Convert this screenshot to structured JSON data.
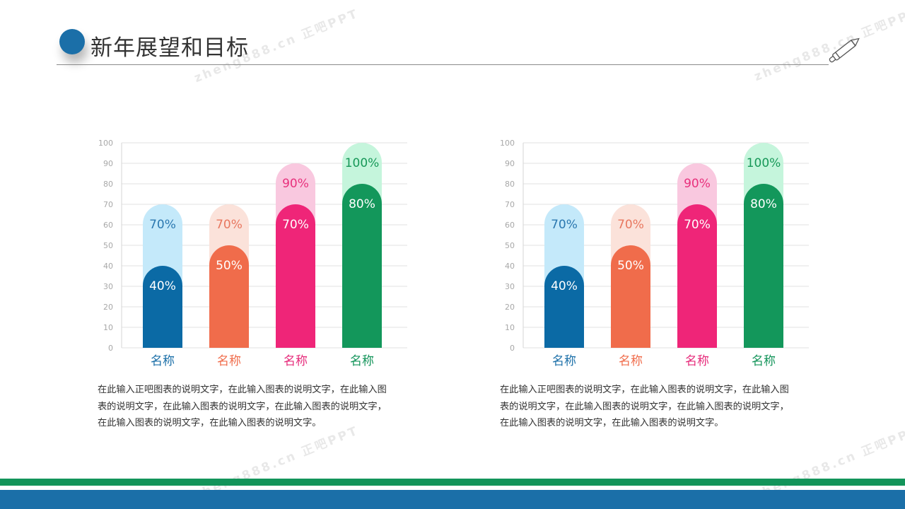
{
  "header": {
    "title": "新年展望和目标"
  },
  "watermark_text": "zheng888.cn 正吧PPT",
  "colors": {
    "primary_blue": "#1b6fa8",
    "primary_green": "#13945a"
  },
  "chart_data": [
    {
      "type": "bar",
      "categories": [
        "名称",
        "名称",
        "名称",
        "名称"
      ],
      "series": [
        {
          "values": [
            70,
            70,
            90,
            100
          ]
        },
        {
          "values": [
            40,
            50,
            70,
            80
          ]
        }
      ],
      "data_labels": {
        "background": [
          "70%",
          "70%",
          "90%",
          "100%"
        ],
        "foreground": [
          "40%",
          "50%",
          "70%",
          "80%"
        ]
      },
      "ylim": [
        0,
        100
      ],
      "yticks": [
        "0",
        "10",
        "20",
        "30",
        "40",
        "50",
        "60",
        "70",
        "80",
        "90",
        "100"
      ],
      "grid": true,
      "colors": {
        "background": [
          "#c4e9fa",
          "#fbe2da",
          "#f9c8df",
          "#c5f5dc"
        ],
        "foreground": [
          "#0b6aa5",
          "#f06c4b",
          "#ef2578",
          "#13975b"
        ],
        "background_label": [
          "#2b78b0",
          "#e8775f",
          "#e8307c",
          "#179858"
        ],
        "category_label": [
          "#1b6fa8",
          "#f06c4b",
          "#e62a7a",
          "#13945a"
        ]
      }
    },
    {
      "type": "bar",
      "categories": [
        "名称",
        "名称",
        "名称",
        "名称"
      ],
      "series": [
        {
          "values": [
            70,
            70,
            90,
            100
          ]
        },
        {
          "values": [
            40,
            50,
            70,
            80
          ]
        }
      ],
      "data_labels": {
        "background": [
          "70%",
          "70%",
          "90%",
          "100%"
        ],
        "foreground": [
          "40%",
          "50%",
          "70%",
          "80%"
        ]
      },
      "ylim": [
        0,
        100
      ],
      "yticks": [
        "0",
        "10",
        "20",
        "30",
        "40",
        "50",
        "60",
        "70",
        "80",
        "90",
        "100"
      ],
      "grid": true,
      "colors": {
        "background": [
          "#c4e9fa",
          "#fbe2da",
          "#f9c8df",
          "#c5f5dc"
        ],
        "foreground": [
          "#0b6aa5",
          "#f06c4b",
          "#ef2578",
          "#13975b"
        ],
        "background_label": [
          "#2b78b0",
          "#e8775f",
          "#e8307c",
          "#179858"
        ],
        "category_label": [
          "#1b6fa8",
          "#f06c4b",
          "#e62a7a",
          "#13945a"
        ]
      }
    }
  ],
  "descriptions": [
    "在此输入正吧图表的说明文字，在此输入图表的说明文字，在此输入图\n表的说明文字，在此输入图表的说明文字，在此输入图表的说明文字，\n在此输入图表的说明文字，在此输入图表的说明文字。",
    "在此输入正吧图表的说明文字，在此输入图表的说明文字，在此输入图\n表的说明文字，在此输入图表的说明文字，在此输入图表的说明文字，\n在此输入图表的说明文字，在此输入图表的说明文字。"
  ]
}
